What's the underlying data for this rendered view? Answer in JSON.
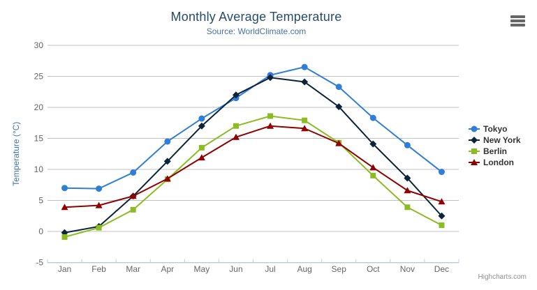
{
  "chart": {
    "credit": "Highcharts.com",
    "icons": {
      "export_menu": "hamburger-icon"
    }
  },
  "chart_data": {
    "type": "line",
    "title": "Monthly Average Temperature",
    "subtitle": "Source: WorldClimate.com",
    "categories": [
      "Jan",
      "Feb",
      "Mar",
      "Apr",
      "May",
      "Jun",
      "Jul",
      "Aug",
      "Sep",
      "Oct",
      "Nov",
      "Dec"
    ],
    "xlabel": "",
    "ylabel": "Temperature (°C)",
    "ylim": [
      -5,
      30
    ],
    "ytick_interval": 5,
    "yticks": [
      30,
      25,
      20,
      15,
      10,
      5,
      0,
      -5
    ],
    "grid": true,
    "legend_position": "right",
    "series": [
      {
        "name": "Tokyo",
        "color": "#2f7ed8",
        "marker": "circle",
        "values": [
          7.0,
          6.9,
          9.5,
          14.5,
          18.2,
          21.5,
          25.2,
          26.5,
          23.3,
          18.3,
          13.9,
          9.6
        ]
      },
      {
        "name": "New York",
        "color": "#0d233a",
        "marker": "diamond",
        "values": [
          -0.2,
          0.8,
          5.7,
          11.3,
          17.0,
          22.0,
          24.8,
          24.1,
          20.1,
          14.1,
          8.6,
          2.5
        ]
      },
      {
        "name": "Berlin",
        "color": "#8bbc21",
        "marker": "square",
        "values": [
          -0.9,
          0.6,
          3.5,
          8.4,
          13.5,
          17.0,
          18.6,
          17.9,
          14.3,
          9.0,
          3.9,
          1.0
        ]
      },
      {
        "name": "London",
        "color": "#910000",
        "marker": "triangle",
        "values": [
          3.9,
          4.2,
          5.7,
          8.5,
          11.9,
          15.2,
          17.0,
          16.6,
          14.2,
          10.3,
          6.6,
          4.8
        ]
      }
    ],
    "colors": {
      "title": "#274b6d",
      "subtitle": "#4572a7",
      "axis_title": "#4572a7",
      "axis_labels": "#666666",
      "gridline": "#c0c0c0",
      "axis_line": "#c0d0e0",
      "legend_text": "#333333",
      "credit": "#909090"
    }
  }
}
